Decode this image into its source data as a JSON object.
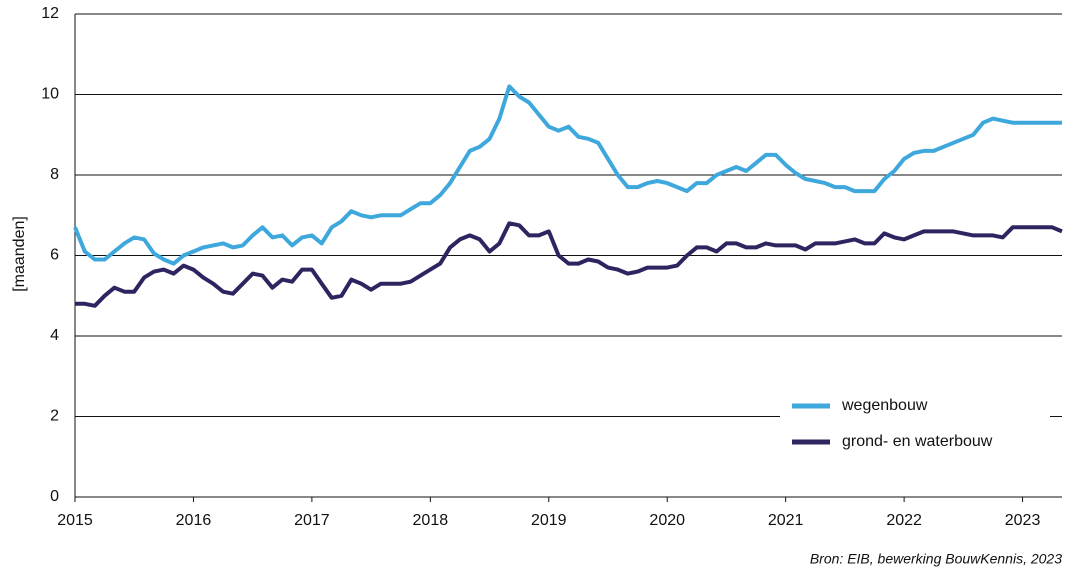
{
  "chart_data": {
    "type": "line",
    "y_label": "[maanden]",
    "source": "Bron: EIB, bewerking BouwKennis, 2023",
    "x": [
      2015,
      2015.083,
      2015.167,
      2015.25,
      2015.333,
      2015.417,
      2015.5,
      2015.583,
      2015.667,
      2015.75,
      2015.833,
      2015.917,
      2016,
      2016.083,
      2016.167,
      2016.25,
      2016.333,
      2016.417,
      2016.5,
      2016.583,
      2016.667,
      2016.75,
      2016.833,
      2016.917,
      2017,
      2017.083,
      2017.167,
      2017.25,
      2017.333,
      2017.417,
      2017.5,
      2017.583,
      2017.667,
      2017.75,
      2017.833,
      2017.917,
      2018,
      2018.083,
      2018.167,
      2018.25,
      2018.333,
      2018.417,
      2018.5,
      2018.583,
      2018.667,
      2018.75,
      2018.833,
      2018.917,
      2019,
      2019.083,
      2019.167,
      2019.25,
      2019.333,
      2019.417,
      2019.5,
      2019.583,
      2019.667,
      2019.75,
      2019.833,
      2019.917,
      2020,
      2020.083,
      2020.167,
      2020.25,
      2020.333,
      2020.417,
      2020.5,
      2020.583,
      2020.667,
      2020.75,
      2020.833,
      2020.917,
      2021,
      2021.083,
      2021.167,
      2021.25,
      2021.333,
      2021.417,
      2021.5,
      2021.583,
      2021.667,
      2021.75,
      2021.833,
      2021.917,
      2022,
      2022.083,
      2022.167,
      2022.25,
      2022.333,
      2022.417,
      2022.5,
      2022.583,
      2022.667,
      2022.75,
      2022.833,
      2022.917,
      2023,
      2023.083,
      2023.167,
      2023.25,
      2023.333
    ],
    "series": [
      {
        "name": "wegenbouw",
        "color": "#3ea8dc",
        "values": [
          6.7,
          6.1,
          5.9,
          5.9,
          6.1,
          6.3,
          6.45,
          6.4,
          6.05,
          5.9,
          5.8,
          6.0,
          6.1,
          6.2,
          6.25,
          6.3,
          6.2,
          6.25,
          6.5,
          6.7,
          6.45,
          6.5,
          6.25,
          6.45,
          6.5,
          6.3,
          6.7,
          6.85,
          7.1,
          7.0,
          6.95,
          7.0,
          7.0,
          7.0,
          7.15,
          7.3,
          7.3,
          7.5,
          7.8,
          8.2,
          8.6,
          8.7,
          8.9,
          9.4,
          10.2,
          9.95,
          9.8,
          9.5,
          9.2,
          9.1,
          9.2,
          8.95,
          8.9,
          8.8,
          8.4,
          8.0,
          7.7,
          7.7,
          7.8,
          7.85,
          7.8,
          7.7,
          7.6,
          7.8,
          7.8,
          8.0,
          8.1,
          8.2,
          8.1,
          8.3,
          8.5,
          8.5,
          8.25,
          8.05,
          7.9,
          7.85,
          7.8,
          7.7,
          7.7,
          7.6,
          7.6,
          7.6,
          7.9,
          8.1,
          8.4,
          8.55,
          8.6,
          8.6,
          8.7,
          8.8,
          8.9,
          9.0,
          9.3,
          9.4,
          9.35,
          9.3,
          9.3,
          9.3,
          9.3,
          9.3,
          9.3
        ]
      },
      {
        "name": "grond- en waterbouw",
        "color": "#2e2460",
        "values": [
          4.8,
          4.8,
          4.75,
          5.0,
          5.2,
          5.1,
          5.1,
          5.45,
          5.6,
          5.65,
          5.55,
          5.75,
          5.65,
          5.45,
          5.3,
          5.1,
          5.05,
          5.3,
          5.55,
          5.5,
          5.2,
          5.4,
          5.35,
          5.65,
          5.65,
          5.3,
          4.95,
          5.0,
          5.4,
          5.3,
          5.15,
          5.3,
          5.3,
          5.3,
          5.35,
          5.5,
          5.65,
          5.8,
          6.2,
          6.4,
          6.5,
          6.4,
          6.1,
          6.3,
          6.8,
          6.75,
          6.5,
          6.5,
          6.6,
          6.0,
          5.8,
          5.8,
          5.9,
          5.85,
          5.7,
          5.65,
          5.55,
          5.6,
          5.7,
          5.7,
          5.7,
          5.75,
          6.0,
          6.2,
          6.2,
          6.1,
          6.3,
          6.3,
          6.2,
          6.2,
          6.3,
          6.25,
          6.25,
          6.25,
          6.15,
          6.3,
          6.3,
          6.3,
          6.35,
          6.4,
          6.3,
          6.3,
          6.55,
          6.45,
          6.4,
          6.5,
          6.6,
          6.6,
          6.6,
          6.6,
          6.55,
          6.5,
          6.5,
          6.5,
          6.45,
          6.7,
          6.7,
          6.7,
          6.7,
          6.7,
          6.6
        ]
      }
    ],
    "xlim": [
      2015,
      2023.333
    ],
    "xticks": [
      2015,
      2016,
      2017,
      2018,
      2019,
      2020,
      2021,
      2022,
      2023
    ],
    "ylim": [
      0,
      12
    ],
    "yticks": [
      0,
      2,
      4,
      6,
      8,
      10,
      12
    ],
    "grid": true,
    "legend": "lower right"
  }
}
